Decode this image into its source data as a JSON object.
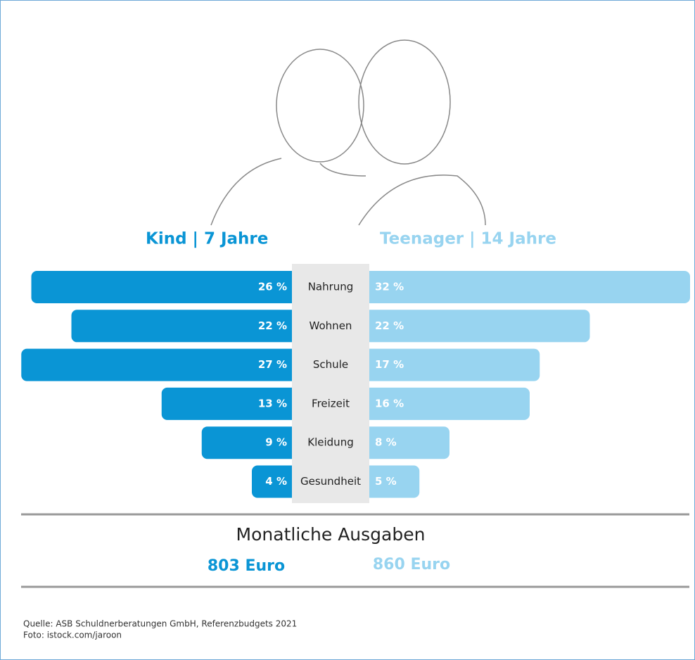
{
  "chart_data": {
    "type": "butterfly",
    "categories": [
      "Nahrung",
      "Wohnen",
      "Schule",
      "Freizeit",
      "Kleidung",
      "Gesundheit"
    ],
    "series": [
      {
        "name": "Kind | 7 Jahre",
        "color": "#0a95d5",
        "values": [
          26,
          22,
          27,
          13,
          9,
          4
        ],
        "value_labels": [
          "26 %",
          "22 %",
          "27 %",
          "13 %",
          "9 %",
          "4 %"
        ]
      },
      {
        "name": "Teenager | 14 Jahre",
        "color": "#98d4f0",
        "values": [
          32,
          22,
          17,
          16,
          8,
          5
        ],
        "value_labels": [
          "32 %",
          "22 %",
          "17 %",
          "16 %",
          "8 %",
          "5 %"
        ]
      }
    ],
    "summary": {
      "title": "Monatliche Ausgaben",
      "totals": [
        "803 Euro",
        "860 Euro"
      ]
    },
    "sources": [
      "Quelle: ASB Schuldnerberatungen GmbH, Referenzbudgets 2021",
      "Foto: istock.com/jaroon"
    ]
  }
}
